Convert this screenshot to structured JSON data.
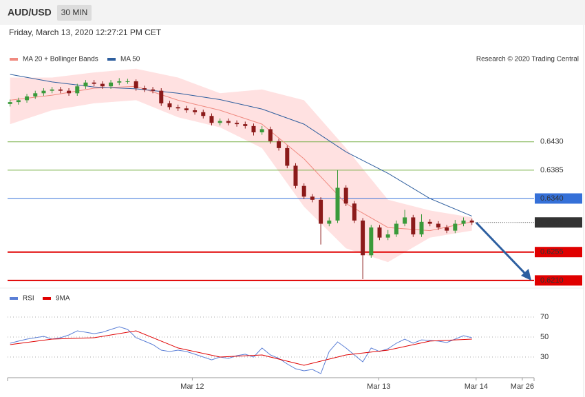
{
  "header": {
    "symbol": "AUD/USD",
    "timeframe": "30 MIN",
    "timestamp": "Friday, March 13, 2020 12:27:21 PM CET"
  },
  "chart_data": [
    {
      "type": "candlestick",
      "note": "Research © 2020 Trading Central",
      "xlim": [
        -0.3,
        62.4
      ],
      "ylim": [
        0.62,
        0.655
      ],
      "up_color": "#3a9a3a",
      "down_color": "#8b1a1a",
      "band_color": "#ffdcdc",
      "candles": {
        "x": [
          0,
          1,
          2,
          3,
          4,
          5,
          6,
          7,
          8,
          9,
          10,
          11,
          12,
          13,
          14,
          15,
          16,
          17,
          18,
          19,
          20,
          21,
          22,
          23,
          24,
          25,
          26,
          27,
          28,
          29,
          30,
          31,
          32,
          33,
          34,
          35,
          36,
          37,
          38,
          39,
          40,
          41,
          42,
          43,
          44,
          45,
          46,
          47,
          48,
          49,
          50,
          51,
          52,
          53,
          54,
          55
        ],
        "open": [
          0.649,
          0.6493,
          0.6496,
          0.6502,
          0.6507,
          0.6511,
          0.6513,
          0.6511,
          0.6507,
          0.6518,
          0.6524,
          0.6522,
          0.6518,
          0.6524,
          0.6526,
          0.6526,
          0.6515,
          0.6513,
          0.6511,
          0.6491,
          0.6485,
          0.6483,
          0.648,
          0.6477,
          0.6471,
          0.646,
          0.6463,
          0.646,
          0.6458,
          0.6455,
          0.6445,
          0.645,
          0.6431,
          0.642,
          0.6392,
          0.636,
          0.6343,
          0.6338,
          0.63,
          0.6305,
          0.6357,
          0.6332,
          0.6305,
          0.625,
          0.6294,
          0.6278,
          0.6283,
          0.63,
          0.631,
          0.6283,
          0.6303,
          0.63,
          0.6294,
          0.6289,
          0.63,
          0.6305
        ],
        "high": [
          0.6497,
          0.65,
          0.6506,
          0.6511,
          0.6515,
          0.6517,
          0.6517,
          0.6515,
          0.6522,
          0.6528,
          0.6528,
          0.6526,
          0.6528,
          0.6531,
          0.653,
          0.6529,
          0.6519,
          0.6517,
          0.6515,
          0.6495,
          0.6489,
          0.6487,
          0.6484,
          0.6481,
          0.6475,
          0.6467,
          0.6467,
          0.6464,
          0.6462,
          0.6459,
          0.6455,
          0.6454,
          0.6435,
          0.6424,
          0.6396,
          0.6364,
          0.6347,
          0.6342,
          0.631,
          0.6385,
          0.6361,
          0.6336,
          0.6309,
          0.6298,
          0.6298,
          0.629,
          0.6305,
          0.6322,
          0.6314,
          0.6315,
          0.6307,
          0.6304,
          0.6298,
          0.6306,
          0.631,
          0.6308
        ],
        "low": [
          0.6486,
          0.6489,
          0.6492,
          0.6498,
          0.6503,
          0.6507,
          0.6507,
          0.6503,
          0.6503,
          0.6514,
          0.6518,
          0.6514,
          0.6514,
          0.652,
          0.6522,
          0.6511,
          0.6509,
          0.6507,
          0.6487,
          0.6481,
          0.6479,
          0.6476,
          0.6473,
          0.6467,
          0.6456,
          0.6456,
          0.6456,
          0.6454,
          0.6451,
          0.644,
          0.6441,
          0.6427,
          0.6416,
          0.6388,
          0.6356,
          0.6339,
          0.6334,
          0.6267,
          0.6296,
          0.6301,
          0.6328,
          0.6301,
          0.6212,
          0.6246,
          0.6274,
          0.6274,
          0.6279,
          0.6296,
          0.6279,
          0.6279,
          0.6296,
          0.629,
          0.6285,
          0.6285,
          0.6296,
          0.6298
        ],
        "close": [
          0.6493,
          0.6496,
          0.6502,
          0.6507,
          0.6511,
          0.6513,
          0.6511,
          0.6507,
          0.6518,
          0.6524,
          0.6522,
          0.6518,
          0.6524,
          0.6526,
          0.6526,
          0.6515,
          0.6513,
          0.6511,
          0.6491,
          0.6485,
          0.6483,
          0.648,
          0.6477,
          0.6471,
          0.646,
          0.6463,
          0.646,
          0.6458,
          0.6455,
          0.6445,
          0.645,
          0.6431,
          0.642,
          0.6392,
          0.636,
          0.6343,
          0.6338,
          0.63,
          0.6305,
          0.6357,
          0.6332,
          0.6305,
          0.625,
          0.6294,
          0.6278,
          0.6283,
          0.63,
          0.631,
          0.6283,
          0.6303,
          0.63,
          0.6294,
          0.6289,
          0.63,
          0.6305,
          0.6302
        ]
      },
      "series": [
        {
          "name": "MA 20 + Bollinger Bands",
          "color": "#f08a80",
          "x": [
            0,
            5,
            10,
            15,
            20,
            25,
            30,
            35,
            40,
            45,
            50,
            55
          ],
          "values": [
            0.6496,
            0.6504,
            0.6515,
            0.6518,
            0.6496,
            0.648,
            0.6458,
            0.6403,
            0.6332,
            0.6294,
            0.6289,
            0.6303
          ],
          "upper": [
            0.6532,
            0.6532,
            0.654,
            0.6546,
            0.6532,
            0.6507,
            0.6513,
            0.6496,
            0.642,
            0.6338,
            0.6321,
            0.631
          ],
          "lower": [
            0.6458,
            0.648,
            0.6491,
            0.6496,
            0.6469,
            0.6453,
            0.642,
            0.6327,
            0.6261,
            0.6239,
            0.6278,
            0.6289
          ]
        },
        {
          "name": "MA 50",
          "color": "#2e5e9e",
          "x": [
            0,
            5,
            10,
            15,
            20,
            25,
            30,
            35,
            40,
            45,
            50,
            55
          ],
          "values": [
            0.6537,
            0.6525,
            0.6517,
            0.6514,
            0.6507,
            0.6497,
            0.6482,
            0.6458,
            0.6414,
            0.638,
            0.634,
            0.6312
          ]
        }
      ],
      "levels": [
        {
          "value": 0.643,
          "label": "0.6430",
          "color": "#7ab04a",
          "style": "plain",
          "width": 1
        },
        {
          "value": 0.6385,
          "label": "0.6385",
          "color": "#7ab04a",
          "style": "plain",
          "width": 1
        },
        {
          "value": 0.634,
          "label": "0.6340",
          "color": "#3570d8",
          "style": "box",
          "width": 1
        },
        {
          "value": 0.6302,
          "label": "0.6302",
          "color": "#333333",
          "style": "dotted-box",
          "width": 1
        },
        {
          "value": 0.6255,
          "label": "0.6255",
          "color": "#e00000",
          "style": "box",
          "width": 2
        },
        {
          "value": 0.621,
          "label": "0.6210",
          "color": "#e00000",
          "style": "box",
          "width": 2
        }
      ]
    },
    {
      "type": "line",
      "xlim": [
        -0.3,
        62.4
      ],
      "ylim": [
        10,
        80
      ],
      "yticks": [
        30,
        50,
        70
      ],
      "grid": true,
      "xticks": [
        {
          "value": 21.7,
          "label": "Mar 12"
        },
        {
          "value": 43.9,
          "label": "Mar 13"
        },
        {
          "value": 55.5,
          "label": "Mar 14"
        },
        {
          "value": 61,
          "label": "Mar 26"
        }
      ],
      "series": [
        {
          "name": "RSI",
          "color": "#5b7fd6",
          "x": [
            0,
            1,
            2,
            3,
            4,
            5,
            6,
            7,
            8,
            9,
            10,
            11,
            12,
            13,
            14,
            15,
            16,
            17,
            18,
            19,
            20,
            21,
            22,
            23,
            24,
            25,
            26,
            27,
            28,
            29,
            30,
            31,
            32,
            33,
            34,
            35,
            36,
            37,
            38,
            39,
            40,
            41,
            42,
            43,
            44,
            45,
            46,
            47,
            48,
            49,
            50,
            51,
            52,
            53,
            54,
            55
          ],
          "values": [
            43.8,
            45.9,
            47.9,
            49.3,
            50.7,
            47.9,
            49.3,
            52.1,
            56.2,
            54.8,
            53.4,
            54.8,
            57.6,
            60.3,
            57.6,
            49.3,
            45.9,
            42.4,
            36.9,
            35.5,
            36.9,
            35.5,
            32.8,
            30.0,
            27.2,
            30.0,
            28.6,
            31.4,
            32.8,
            30.0,
            39.0,
            32.1,
            28.6,
            23.1,
            18.3,
            16.2,
            17.6,
            13.4,
            35.5,
            45.2,
            39.0,
            32.1,
            25.2,
            39.0,
            35.5,
            38.3,
            43.8,
            47.9,
            43.8,
            47.2,
            46.6,
            45.9,
            44.5,
            47.9,
            51.4,
            49.3
          ]
        },
        {
          "name": "9MA",
          "color": "#e00000",
          "x": [
            0,
            5,
            10,
            15,
            20,
            25,
            30,
            35,
            40,
            45,
            50,
            55
          ],
          "values": [
            42.4,
            47.9,
            49.3,
            56.2,
            39.0,
            30.0,
            32.1,
            21.7,
            32.1,
            36.9,
            45.9,
            47.9
          ]
        }
      ]
    }
  ]
}
